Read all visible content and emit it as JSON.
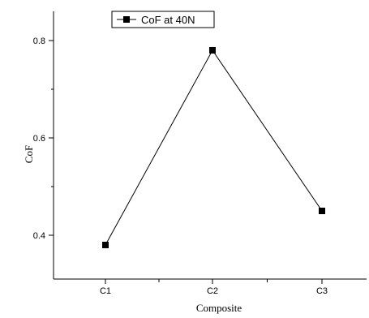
{
  "chart_data": {
    "type": "line",
    "categories": [
      "C1",
      "C2",
      "C3"
    ],
    "series": [
      {
        "name": "CoF at 40N",
        "values": [
          0.38,
          0.78,
          0.45
        ]
      }
    ],
    "xlabel": "Composite",
    "ylabel": "CoF",
    "ylim": [
      0.31,
      0.86
    ],
    "yticks": [
      "0.4",
      "0.6",
      "0.8"
    ],
    "ytick_values": [
      0.4,
      0.6,
      0.8
    ],
    "grid": false,
    "legend": "top-center",
    "marker": "square",
    "color": "#000000"
  }
}
